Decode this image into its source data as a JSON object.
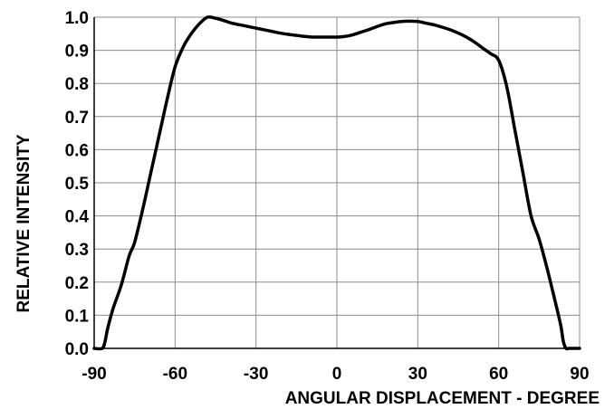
{
  "chart_data": {
    "type": "line",
    "xlabel": "ANGULAR DISPLACEMENT - DEGREE",
    "ylabel": "RELATIVE INTENSITY",
    "xlim": [
      -90,
      90
    ],
    "ylim": [
      0,
      1
    ],
    "x_ticks": [
      "-90",
      "-60",
      "-30",
      "0",
      "30",
      "60",
      "90"
    ],
    "x_tick_values": [
      -90,
      -60,
      -30,
      0,
      30,
      60,
      90
    ],
    "y_ticks": [
      "0.0",
      "0.1",
      "0.2",
      "0.3",
      "0.4",
      "0.5",
      "0.6",
      "0.7",
      "0.8",
      "0.9",
      "1.0"
    ],
    "y_tick_values": [
      0,
      0.1,
      0.2,
      0.3,
      0.4,
      0.5,
      0.6,
      0.7,
      0.8,
      0.9,
      1.0
    ],
    "grid": true,
    "series": [
      {
        "x": [
          -90,
          -87,
          -86,
          -85,
          -83,
          -80,
          -77,
          -75,
          -72,
          -69,
          -66,
          -63,
          -60,
          -57,
          -54,
          -51,
          -48,
          -45,
          -42,
          -39,
          -36,
          -33,
          -30,
          -27,
          -24,
          -21,
          -18,
          -15,
          -12,
          -9,
          -6,
          -3,
          0,
          3,
          6,
          9,
          12,
          15,
          18,
          21,
          24,
          27,
          30,
          33,
          36,
          39,
          42,
          45,
          48,
          51,
          54,
          57,
          60,
          63,
          66,
          69,
          72,
          75,
          78,
          81,
          83,
          84,
          85,
          86,
          87,
          90
        ],
        "y": [
          0.0,
          0.0,
          0.02,
          0.06,
          0.12,
          0.19,
          0.28,
          0.32,
          0.42,
          0.53,
          0.64,
          0.75,
          0.85,
          0.91,
          0.95,
          0.98,
          1.0,
          0.997,
          0.99,
          0.982,
          0.977,
          0.972,
          0.967,
          0.962,
          0.957,
          0.952,
          0.948,
          0.945,
          0.942,
          0.94,
          0.94,
          0.94,
          0.94,
          0.942,
          0.947,
          0.955,
          0.963,
          0.972,
          0.98,
          0.984,
          0.987,
          0.988,
          0.987,
          0.982,
          0.977,
          0.97,
          0.962,
          0.952,
          0.94,
          0.925,
          0.907,
          0.89,
          0.87,
          0.79,
          0.66,
          0.53,
          0.4,
          0.33,
          0.24,
          0.14,
          0.07,
          0.02,
          0.0,
          0.0,
          0.0,
          0.0
        ]
      }
    ]
  }
}
